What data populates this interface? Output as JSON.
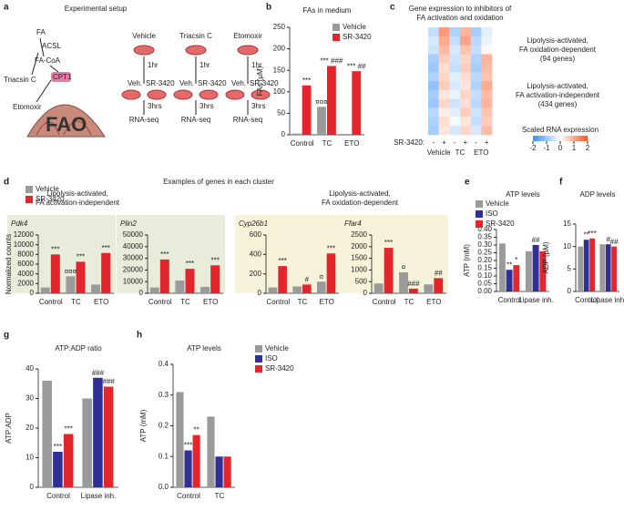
{
  "diagram": {
    "panel": "a",
    "title": "Experimental setup",
    "pathway": {
      "fa": "FA",
      "acsl": "ACSL",
      "facoa": "FA-CoA",
      "triacsin": "Triacsin C",
      "cpt1": "CPT1",
      "etomoxir": "Etomoxir",
      "fao": "FAO"
    },
    "arms": [
      {
        "treatment": "Vehicle",
        "time1": "1hr",
        "veh": "Veh.",
        "sr": "SR-3420",
        "time2": "3hrs",
        "readout": "RNA-seq"
      },
      {
        "treatment": "Triacsin C",
        "time1": "1hr",
        "veh": "Veh.",
        "sr": "SR-3420",
        "time2": "3hrs",
        "readout": "RNA-seq"
      },
      {
        "treatment": "Etomoxir",
        "time1": "1hr",
        "veh": "Veh.",
        "sr": "SR-3420",
        "time2": "3hrs",
        "readout": "RNA-seq"
      }
    ]
  },
  "chart_data": [
    {
      "type": "bar",
      "panel": "b",
      "title": "FAs in medium",
      "ylabel": "FAs (μM)",
      "categories": [
        "Control",
        "TC",
        "ETO"
      ],
      "series": [
        {
          "name": "Vehicle",
          "color": "#9a9a9a",
          "values": [
            3,
            65,
            2
          ],
          "sig": [
            null,
            "¤¤¤",
            null
          ]
        },
        {
          "name": "SR-3420",
          "color": "#e3262b",
          "values": [
            115,
            160,
            148
          ],
          "sig": [
            "***",
            "*** ###",
            "*** ##"
          ]
        }
      ],
      "ylim": [
        0,
        250
      ],
      "yticks": [
        0,
        50,
        100,
        150,
        200,
        250
      ],
      "legend": "upper-right"
    },
    {
      "type": "heatmap",
      "panel": "c",
      "title": [
        "Gene expression to inhibitors of",
        "FA activation and oxidation"
      ],
      "row_label": "SR-3420:",
      "columns": [
        "-",
        "+",
        "-",
        "+",
        "-",
        "+"
      ],
      "groups": [
        "Vehicle",
        "TC",
        "ETO"
      ],
      "clusters": [
        [
          "Lipolysis-activated,",
          "FA oxidation-dependent",
          "(94 genes)"
        ],
        [
          "Lipolysis-activated,",
          "FA activation-independent",
          "(434 genes)"
        ]
      ],
      "matrix": [
        [
          -0.6,
          1.2,
          -0.8,
          0.9,
          -0.9,
          -0.3
        ],
        [
          -0.4,
          1.0,
          -0.6,
          1.1,
          -0.7,
          -0.2
        ],
        [
          -0.5,
          0.8,
          -0.4,
          0.7,
          -0.6,
          0.1
        ],
        [
          -0.9,
          0.6,
          -0.5,
          0.5,
          -0.8,
          0.9
        ],
        [
          -1.0,
          0.4,
          -0.6,
          0.6,
          -0.9,
          0.8
        ],
        [
          -0.8,
          0.5,
          -0.3,
          0.4,
          -0.7,
          0.7
        ],
        [
          -1.1,
          0.6,
          -0.4,
          0.3,
          -0.8,
          1.0
        ],
        [
          -0.9,
          0.3,
          -0.2,
          0.5,
          -0.6,
          0.8
        ],
        [
          -1.0,
          0.5,
          -0.5,
          0.4,
          -0.7,
          0.9
        ],
        [
          -0.7,
          0.2,
          -0.3,
          0.6,
          -0.5,
          0.7
        ],
        [
          -0.8,
          0.4,
          -0.1,
          0.3,
          -0.6,
          0.6
        ],
        [
          -0.9,
          0.3,
          -0.4,
          0.5,
          -0.4,
          0.8
        ]
      ],
      "zlim": [
        -2,
        2
      ],
      "zticks": [
        -2,
        -1,
        0,
        1,
        2
      ],
      "colorbar_label": "Scaled RNA expression"
    },
    {
      "type": "bar",
      "panel": "d",
      "section_title": "Examples of genes in each cluster",
      "group_title": [
        "Lipolysis-activated,",
        "FA activation-independent"
      ],
      "gene": "Pdk4",
      "ylabel": "Normalized counts",
      "background": "#e7ecdb",
      "categories": [
        "Control",
        "TC",
        "ETO"
      ],
      "series": [
        {
          "name": "Vehicle",
          "color": "#9a9a9a",
          "values": [
            1200,
            3500,
            1800
          ],
          "sig": [
            null,
            "¤¤¤",
            null
          ]
        },
        {
          "name": "SR-3420",
          "color": "#e3262b",
          "values": [
            8000,
            6500,
            8300
          ],
          "sig": [
            "***",
            "***",
            "***"
          ]
        }
      ],
      "ylim": [
        0,
        12000
      ],
      "yticks": [
        0,
        2000,
        4000,
        6000,
        8000,
        10000,
        12000
      ],
      "legend": "upper-left"
    },
    {
      "type": "bar",
      "gene": "Plin2",
      "background": "#e7ecdb",
      "categories": [
        "Control",
        "TC",
        "ETO"
      ],
      "series": [
        {
          "name": "Vehicle",
          "color": "#9a9a9a",
          "values": [
            5000,
            11000,
            5500
          ],
          "sig": [
            null,
            null,
            null
          ]
        },
        {
          "name": "SR-3420",
          "color": "#e3262b",
          "values": [
            29000,
            21000,
            24000
          ],
          "sig": [
            "***",
            "***",
            "***"
          ]
        }
      ],
      "ylim": [
        0,
        50000
      ],
      "yticks": [
        0,
        10000,
        20000,
        30000,
        40000,
        50000
      ]
    },
    {
      "type": "bar",
      "group_title": [
        "Lipolysis-activated,",
        "FA oxidation-dependent"
      ],
      "gene": "Cyp26b1",
      "background": "#f7f3da",
      "categories": [
        "Control",
        "TC",
        "ETO"
      ],
      "series": [
        {
          "name": "Vehicle",
          "color": "#9a9a9a",
          "values": [
            60,
            70,
            120
          ],
          "sig": [
            null,
            null,
            "¤"
          ]
        },
        {
          "name": "SR-3420",
          "color": "#e3262b",
          "values": [
            280,
            90,
            410
          ],
          "sig": [
            "***",
            "#",
            "***"
          ]
        }
      ],
      "ylim": [
        0,
        600
      ],
      "yticks": [
        0,
        200,
        400,
        600
      ]
    },
    {
      "type": "bar",
      "gene": "Ffar4",
      "background": "#f7f3da",
      "categories": [
        "Control",
        "TC",
        "ETO"
      ],
      "series": [
        {
          "name": "Vehicle",
          "color": "#9a9a9a",
          "values": [
            420,
            900,
            380
          ],
          "sig": [
            null,
            "¤",
            null
          ]
        },
        {
          "name": "SR-3420",
          "color": "#e3262b",
          "values": [
            1950,
            200,
            650
          ],
          "sig": [
            "***",
            "###",
            "##"
          ]
        }
      ],
      "ylim": [
        0,
        2500
      ],
      "yticks": [
        0,
        500,
        1000,
        1500,
        2000,
        2500
      ]
    },
    {
      "type": "bar",
      "panel": "e",
      "title": "ATP levels",
      "ylabel": "ATP (mM)",
      "categories": [
        "Control",
        "Lipase inh."
      ],
      "series": [
        {
          "name": "Vehicle",
          "color": "#9a9a9a",
          "values": [
            0.31,
            0.26
          ],
          "sig": [
            null,
            null
          ]
        },
        {
          "name": "ISO",
          "color": "#2f2f96",
          "values": [
            0.14,
            0.3
          ],
          "sig": [
            "**",
            "##"
          ]
        },
        {
          "name": "SR-3420",
          "color": "#e3262b",
          "values": [
            0.17,
            0.26
          ],
          "sig": [
            "*",
            null
          ]
        }
      ],
      "ylim": [
        0,
        0.4
      ],
      "yticks": [
        {
          "value": 0,
          "label": "0.00"
        },
        0.05,
        {
          "value": 0.1,
          "label": "0.10"
        },
        0.15,
        {
          "value": 0.2,
          "label": "0.20"
        },
        0.25,
        {
          "value": 0.3,
          "label": "0.30"
        },
        0.35,
        {
          "value": 0.4,
          "label": "0.40"
        }
      ],
      "legend": "upper-left"
    },
    {
      "type": "bar",
      "panel": "f",
      "title": "ADP levels",
      "ylabel": "ADP (μM)",
      "categories": [
        "Control",
        "Lipase inh."
      ],
      "series": [
        {
          "name": "Vehicle",
          "color": "#9a9a9a",
          "values": [
            10,
            10.5
          ],
          "sig": [
            null,
            null
          ]
        },
        {
          "name": "ISO",
          "color": "#2f2f96",
          "values": [
            11.5,
            10.5
          ],
          "sig": [
            "**",
            "#"
          ]
        },
        {
          "name": "SR-3420",
          "color": "#e3262b",
          "values": [
            11.8,
            10
          ],
          "sig": [
            "***",
            "##"
          ]
        }
      ],
      "ylim": [
        0,
        15
      ],
      "yticks": [
        0,
        5,
        10,
        15
      ]
    },
    {
      "type": "bar",
      "panel": "g",
      "title": "ATP:ADP ratio",
      "ylabel": "ATP:ADP",
      "categories": [
        "Control",
        "Lipase inh."
      ],
      "series": [
        {
          "name": "Vehicle",
          "color": "#9a9a9a",
          "values": [
            36,
            30
          ],
          "sig": [
            null,
            null
          ]
        },
        {
          "name": "ISO",
          "color": "#2f2f96",
          "values": [
            12,
            37
          ],
          "sig": [
            "***",
            "###"
          ]
        },
        {
          "name": "SR-3420",
          "color": "#e3262b",
          "values": [
            18,
            34
          ],
          "sig": [
            "***",
            "###"
          ]
        }
      ],
      "ylim": [
        0,
        40
      ],
      "yticks": [
        0,
        10,
        20,
        30,
        40
      ]
    },
    {
      "type": "bar",
      "panel": "h",
      "title": "ATP levels",
      "ylabel": "ATP (mM)",
      "categories": [
        "Control",
        "TC"
      ],
      "series": [
        {
          "name": "Vehicle",
          "color": "#9a9a9a",
          "values": [
            0.31,
            0.23
          ],
          "sig": [
            null,
            null
          ]
        },
        {
          "name": "ISO",
          "color": "#2f2f96",
          "values": [
            0.12,
            0.1
          ],
          "sig": [
            "***",
            null
          ]
        },
        {
          "name": "SR-3420",
          "color": "#e3262b",
          "values": [
            0.17,
            0.1
          ],
          "sig": [
            "**",
            null
          ]
        }
      ],
      "ylim": [
        0,
        0.4
      ],
      "yticks": [
        {
          "value": 0,
          "label": "0.0"
        },
        0.1,
        0.2,
        0.3,
        0.4
      ],
      "legend": "upper-right"
    }
  ]
}
